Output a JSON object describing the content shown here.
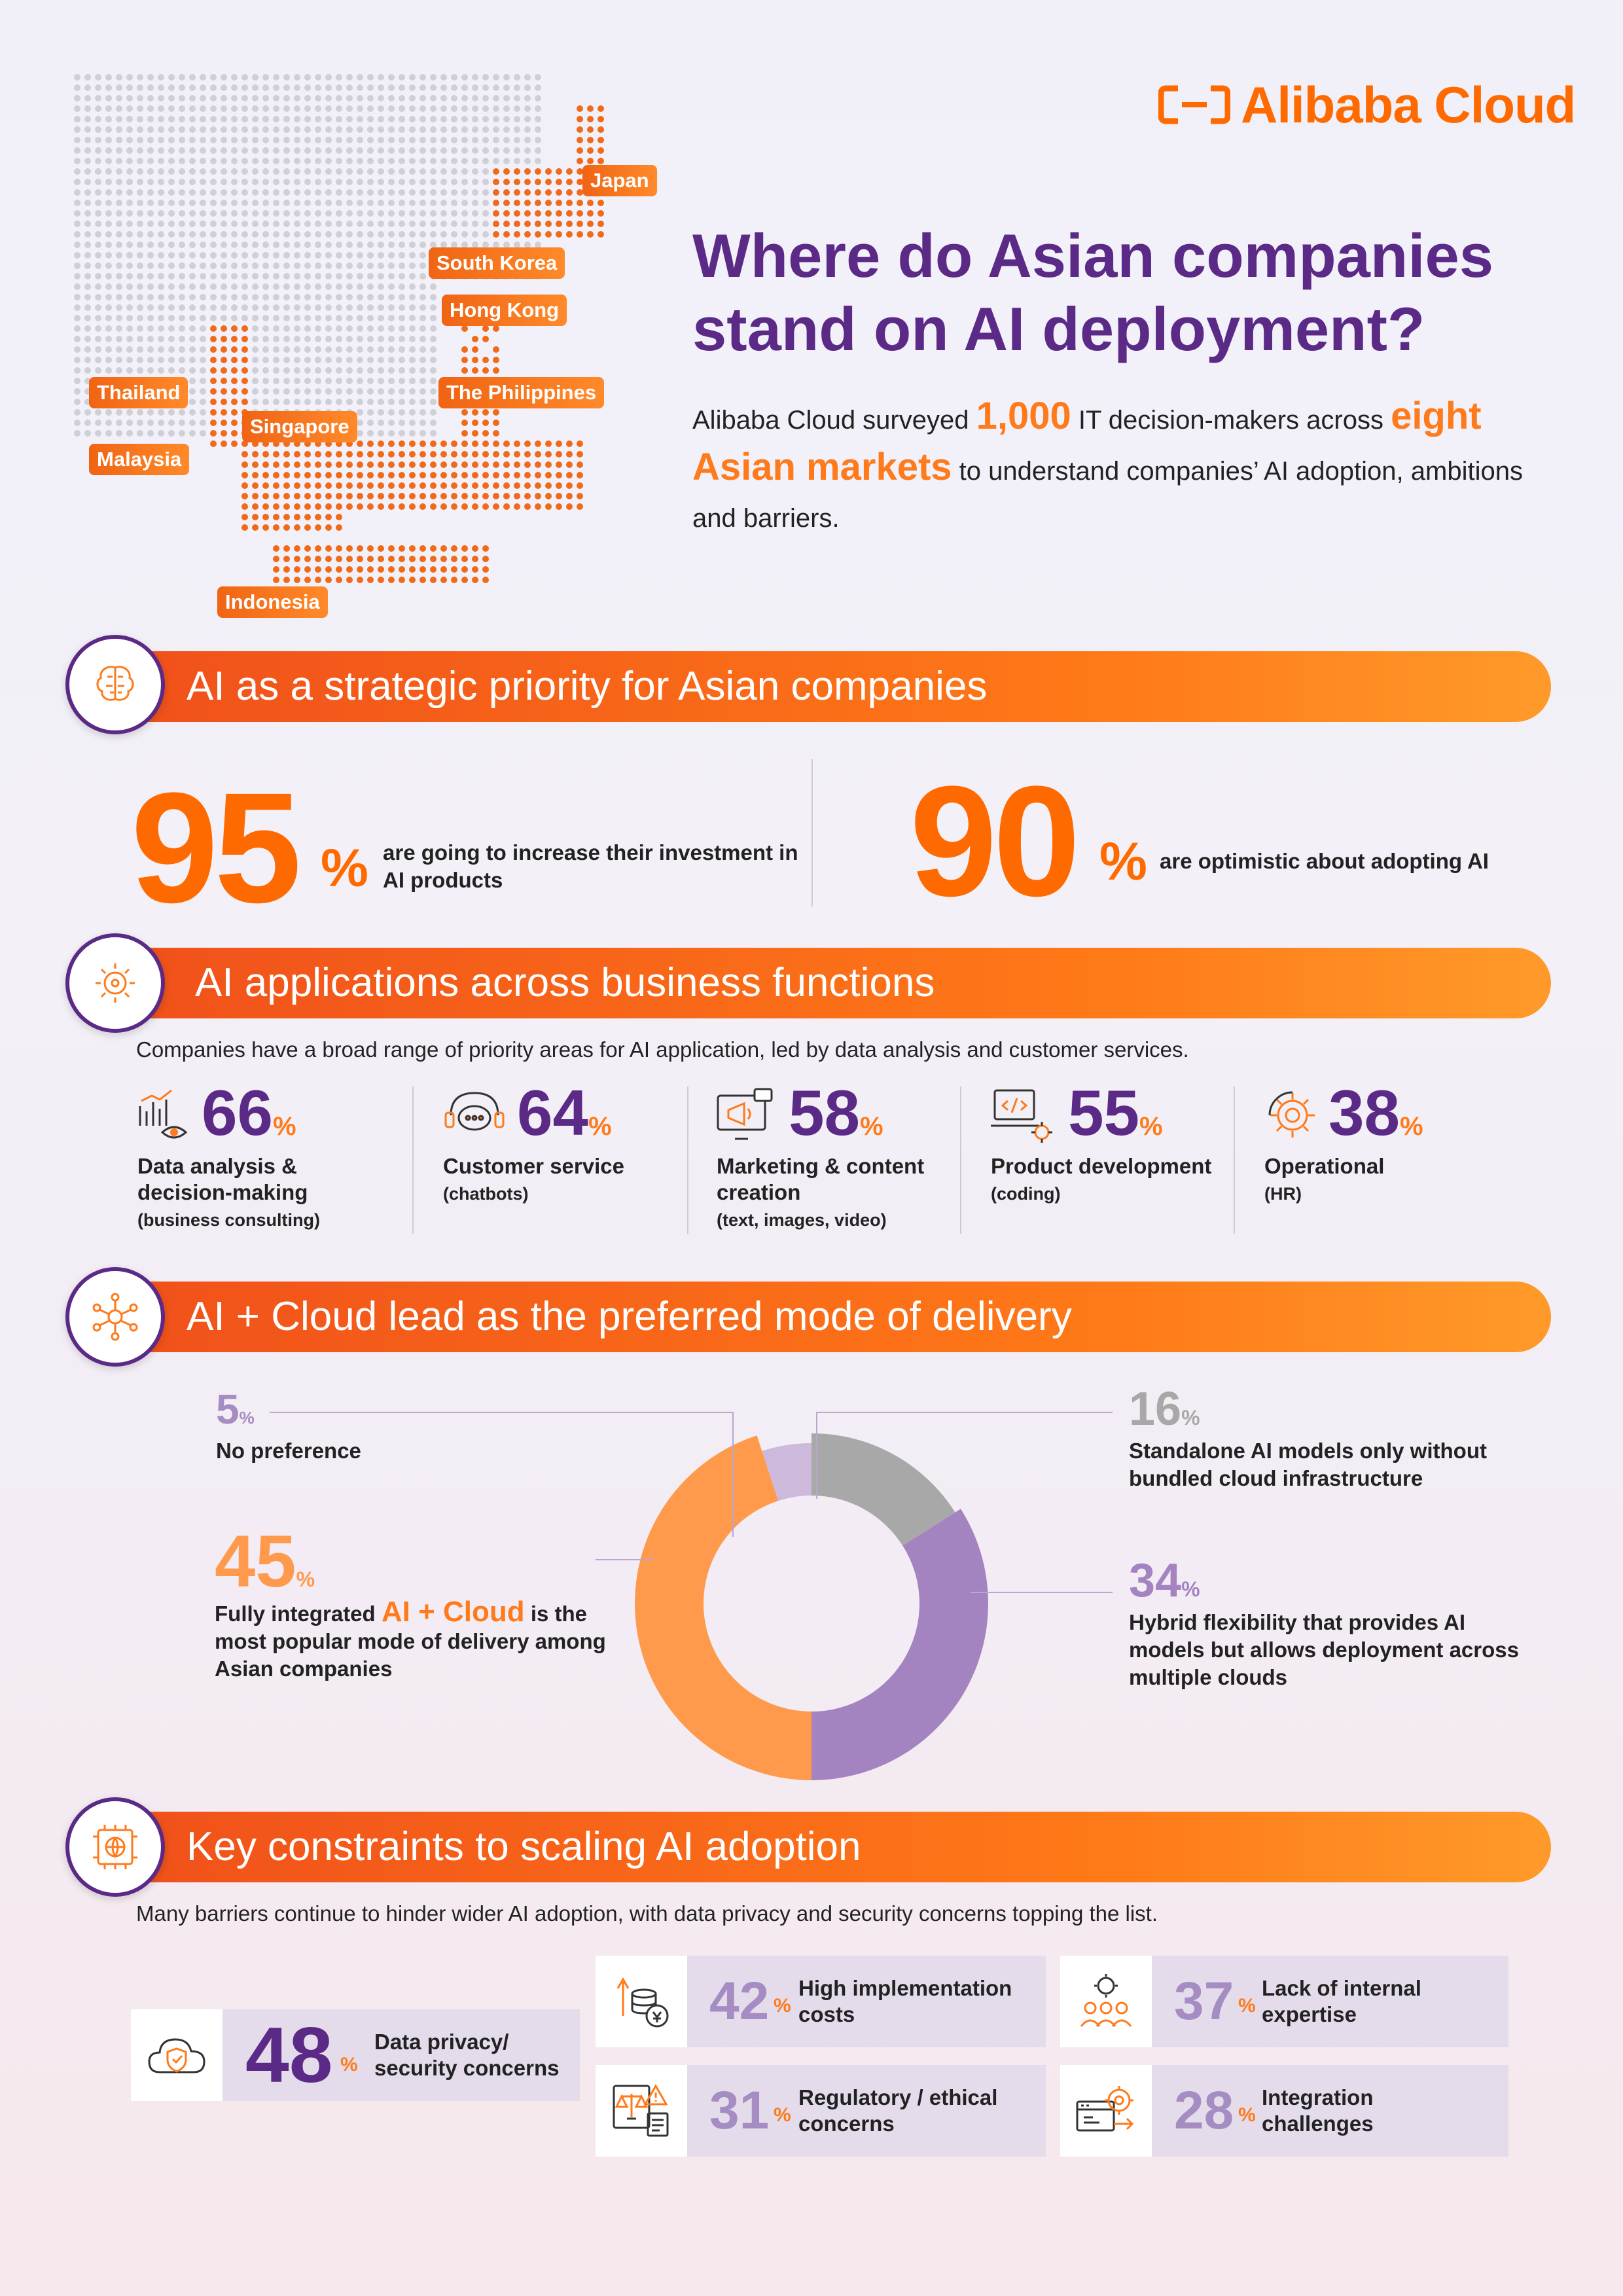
{
  "brand": {
    "name": "Alibaba Cloud",
    "accent": "#ff6a00",
    "purple": "#5b2a86"
  },
  "header": {
    "title": "Where do Asian companies stand on AI deployment?",
    "intro": {
      "part1": "Alibaba Cloud surveyed ",
      "count": "1,000",
      "part2": " IT decision-makers across ",
      "markets": "eight Asian markets",
      "part3": " to understand companies’ AI adoption, ambitions and barriers."
    }
  },
  "map": {
    "labels": [
      "Japan",
      "South Korea",
      "Hong Kong",
      "Thailand",
      "The Philippines",
      "Singapore",
      "Malaysia",
      "Indonesia"
    ]
  },
  "sections": {
    "priority": {
      "title": "AI as a strategic priority for Asian companies"
    },
    "applications": {
      "title": "AI applications across business functions",
      "subtitle": "Companies have a broad range of priority areas for AI application, led by data analysis and customer services."
    },
    "delivery": {
      "title": "AI + Cloud lead as the preferred mode of delivery"
    },
    "constraints": {
      "title": "Key constraints to scaling AI adoption",
      "subtitle": "Many barriers continue to hinder wider AI adoption, with data privacy and security concerns topping the list."
    }
  },
  "priority_stats": [
    {
      "value": "95",
      "pct": "%",
      "desc": "are going to increase their investment in AI products"
    },
    {
      "value": "90",
      "pct": "%",
      "desc": "are optimistic about adopting AI"
    }
  ],
  "functions": [
    {
      "value": "66",
      "pct": "%",
      "label": "Data analysis & decision-making",
      "sub": "(business consulting)",
      "icon": "chart-eye-icon"
    },
    {
      "value": "64",
      "pct": "%",
      "label": "Customer service",
      "sub": "(chatbots)",
      "icon": "chat-headset-icon"
    },
    {
      "value": "58",
      "pct": "%",
      "label": "Marketing & content creation",
      "sub": "(text, images, video)",
      "icon": "megaphone-screen-icon"
    },
    {
      "value": "55",
      "pct": "%",
      "label": "Product development",
      "sub": "(coding)",
      "icon": "code-laptop-icon"
    },
    {
      "value": "38",
      "pct": "%",
      "label": "Operational",
      "sub": "(HR)",
      "icon": "gear-icon"
    }
  ],
  "chart_data": {
    "type": "pie",
    "variant": "donut",
    "categories": [
      "No preference",
      "Standalone AI models only without bundled cloud infrastructure",
      "Hybrid flexibility that provides AI models but allows deployment across multiple clouds",
      "Fully integrated AI + Cloud is the most popular mode of delivery among Asian companies"
    ],
    "values": [
      5,
      16,
      34,
      45
    ],
    "colors": [
      "#cdb9dc",
      "#a8a8a8",
      "#a383c0",
      "#ff9a4d"
    ],
    "labels": {
      "no_pref": {
        "value": "5",
        "pct": "%",
        "text": "No preference"
      },
      "standalone": {
        "value": "16",
        "pct": "%",
        "text": "Standalone AI models only without bundled cloud infrastructure"
      },
      "hybrid": {
        "value": "34",
        "pct": "%",
        "text": "Hybrid flexibility that provides AI models but allows deployment across multiple clouds"
      },
      "integrated": {
        "value": "45",
        "pct": "%",
        "pre": "Fully integrated ",
        "hl": "AI + Cloud",
        "post": " is the most popular mode of delivery among Asian companies"
      }
    }
  },
  "constraints": [
    {
      "value": "48",
      "pct": "%",
      "label": "Data privacy/ security concerns",
      "icon": "cloud-shield-icon"
    },
    {
      "value": "42",
      "pct": "%",
      "label": "High implementation costs",
      "icon": "coins-arrow-icon"
    },
    {
      "value": "37",
      "pct": "%",
      "label": "Lack of internal expertise",
      "icon": "team-gear-icon"
    },
    {
      "value": "31",
      "pct": "%",
      "label": "Regulatory / ethical concerns",
      "icon": "scale-warning-icon"
    },
    {
      "value": "28",
      "pct": "%",
      "label": "Integration challenges",
      "icon": "integration-gear-icon"
    }
  ]
}
